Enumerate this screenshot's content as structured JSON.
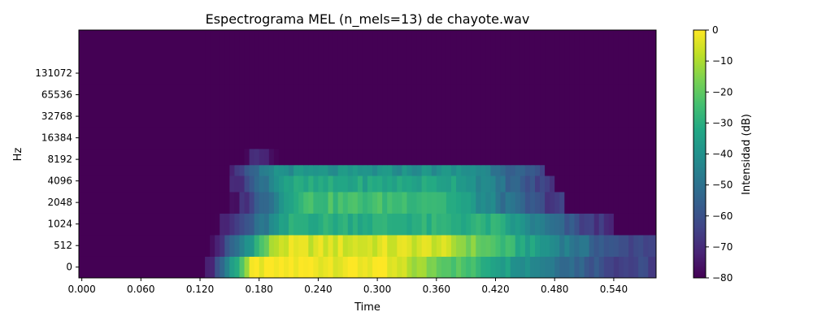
{
  "chart_data": {
    "type": "heatmap",
    "title": "Espectrograma MEL (n_mels=13) de chayote.wav",
    "xlabel": "Time",
    "ylabel": "Hz",
    "colorbar_label": "Intensidad (dB)",
    "colormap": "viridis",
    "xlim": [
      -0.003,
      0.583
    ],
    "x_ticks": [
      "0.000",
      "0.060",
      "0.120",
      "0.180",
      "0.240",
      "0.300",
      "0.360",
      "0.420",
      "0.480",
      "0.540"
    ],
    "y_ticks": [
      "0",
      "512",
      "1024",
      "2048",
      "4096",
      "8192",
      "16384",
      "32768",
      "65536",
      "131072"
    ],
    "n_bands": 13,
    "band_boundaries": [
      -0.5,
      0.5,
      1.5,
      2.5,
      3.5,
      4.25,
      4.75,
      5.5,
      6.5,
      7.5,
      8.5,
      9.5,
      10.5,
      11.0
    ],
    "colorbar_ticks": [
      "0",
      "−10",
      "−20",
      "−30",
      "−40",
      "−50",
      "−60",
      "−70",
      "−80"
    ],
    "vmin": -80,
    "vmax": 0,
    "frame_times": [
      -0.003,
      0.125,
      0.13,
      0.135,
      0.14,
      0.145,
      0.15,
      0.155,
      0.16,
      0.165,
      0.17,
      0.175,
      0.18,
      0.185,
      0.19,
      0.195,
      0.2,
      0.205,
      0.21,
      0.215,
      0.22,
      0.225,
      0.23,
      0.235,
      0.24,
      0.245,
      0.25,
      0.255,
      0.26,
      0.265,
      0.27,
      0.275,
      0.28,
      0.285,
      0.29,
      0.295,
      0.3,
      0.305,
      0.31,
      0.315,
      0.32,
      0.325,
      0.33,
      0.335,
      0.34,
      0.345,
      0.35,
      0.355,
      0.36,
      0.365,
      0.37,
      0.375,
      0.38,
      0.385,
      0.39,
      0.395,
      0.4,
      0.405,
      0.41,
      0.415,
      0.42,
      0.425,
      0.43,
      0.435,
      0.44,
      0.445,
      0.45,
      0.455,
      0.46,
      0.465,
      0.47,
      0.475,
      0.48,
      0.485,
      0.49,
      0.495,
      0.5,
      0.505,
      0.51,
      0.515,
      0.52,
      0.525,
      0.53,
      0.535,
      0.54,
      0.545,
      0.55,
      0.555,
      0.56,
      0.565,
      0.57,
      0.575,
      0.583
    ],
    "band_envelopes": [
      {
        "on": 0.125,
        "off": 0.583,
        "peak": -1,
        "attack": 0.05,
        "peak_start": 0.2,
        "peak_end": 0.3,
        "decay_end": 0.545,
        "end_level": -64
      },
      {
        "on": 0.13,
        "off": 0.583,
        "peak": -5,
        "attack": 0.07,
        "peak_start": 0.22,
        "peak_end": 0.36,
        "decay_end": 0.545,
        "end_level": -62
      },
      {
        "on": 0.135,
        "off": 0.54,
        "peak": -30,
        "attack": 0.08,
        "peak_start": 0.25,
        "peak_end": 0.42,
        "decay_end": 0.52,
        "end_level": -68
      },
      {
        "on": 0.15,
        "off": 0.49,
        "peak": -25,
        "attack": 0.07,
        "peak_start": 0.22,
        "peak_end": 0.36,
        "decay_end": 0.475,
        "end_level": -66
      },
      {
        "on": 0.145,
        "off": 0.48,
        "peak": -33,
        "attack": 0.06,
        "peak_start": 0.22,
        "peak_end": 0.38,
        "decay_end": 0.47,
        "end_level": -66
      },
      {
        "on": 0.145,
        "off": 0.47,
        "peak": -40,
        "attack": 0.05,
        "peak_start": 0.22,
        "peak_end": 0.4,
        "decay_end": 0.465,
        "end_level": -64
      },
      {
        "on": 0.165,
        "off": 0.235,
        "peak": -72,
        "attack": 0.01,
        "peak_start": 0.17,
        "peak_end": 0.18,
        "decay_end": 0.2,
        "end_level": -80
      },
      {
        "on": 0.0,
        "off": 0.0,
        "peak": -80,
        "attack": 0.01,
        "peak_start": 0.0,
        "peak_end": 0.0,
        "decay_end": 0.0,
        "end_level": -80
      },
      {
        "on": 0.0,
        "off": 0.0,
        "peak": -80,
        "attack": 0.01,
        "peak_start": 0.0,
        "peak_end": 0.0,
        "decay_end": 0.0,
        "end_level": -80
      },
      {
        "on": 0.0,
        "off": 0.0,
        "peak": -80,
        "attack": 0.01,
        "peak_start": 0.0,
        "peak_end": 0.0,
        "decay_end": 0.0,
        "end_level": -80
      },
      {
        "on": 0.0,
        "off": 0.0,
        "peak": -80,
        "attack": 0.01,
        "peak_start": 0.0,
        "peak_end": 0.0,
        "decay_end": 0.0,
        "end_level": -80
      },
      {
        "on": 0.0,
        "off": 0.0,
        "peak": -80,
        "attack": 0.01,
        "peak_start": 0.0,
        "peak_end": 0.0,
        "decay_end": 0.0,
        "end_level": -80
      },
      {
        "on": 0.0,
        "off": 0.0,
        "peak": -80,
        "attack": 0.01,
        "peak_start": 0.0,
        "peak_end": 0.0,
        "decay_end": 0.0,
        "end_level": -80
      }
    ]
  }
}
